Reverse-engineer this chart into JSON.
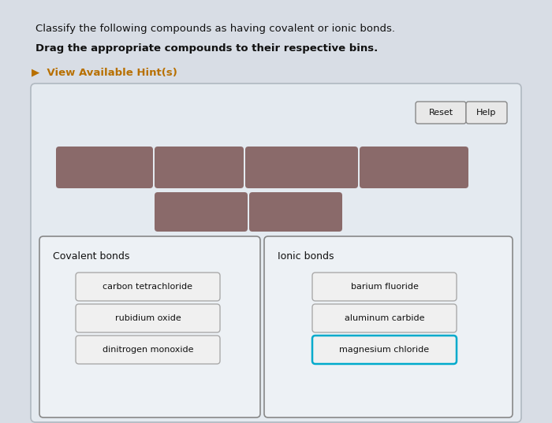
{
  "title_line1": "Classify the following compounds as having covalent or ionic bonds.",
  "title_line2": "Drag the appropriate compounds to their respective bins.",
  "hint_text": "▶  View Available Hint(s)",
  "bg_color": "#d8dde5",
  "panel_bg": "#e8edf3",
  "draggable_color": "#8a6a6a",
  "reset_btn_label": "Reset",
  "help_btn_label": "Help",
  "covalent_label": "Covalent bonds",
  "ionic_label": "Ionic bonds",
  "covalent_compounds": [
    "carbon tetrachloride",
    "rubidium oxide",
    "dinitrogen monoxide"
  ],
  "ionic_compounds": [
    "barium fluoride",
    "aluminum carbide",
    "magnesium chloride"
  ],
  "compound_btn_color": "#f0f0f0",
  "compound_btn_border": "#aaaaaa",
  "magnesium_border": "#00aacc",
  "font_color": "#111111",
  "hint_color": "#b87000"
}
